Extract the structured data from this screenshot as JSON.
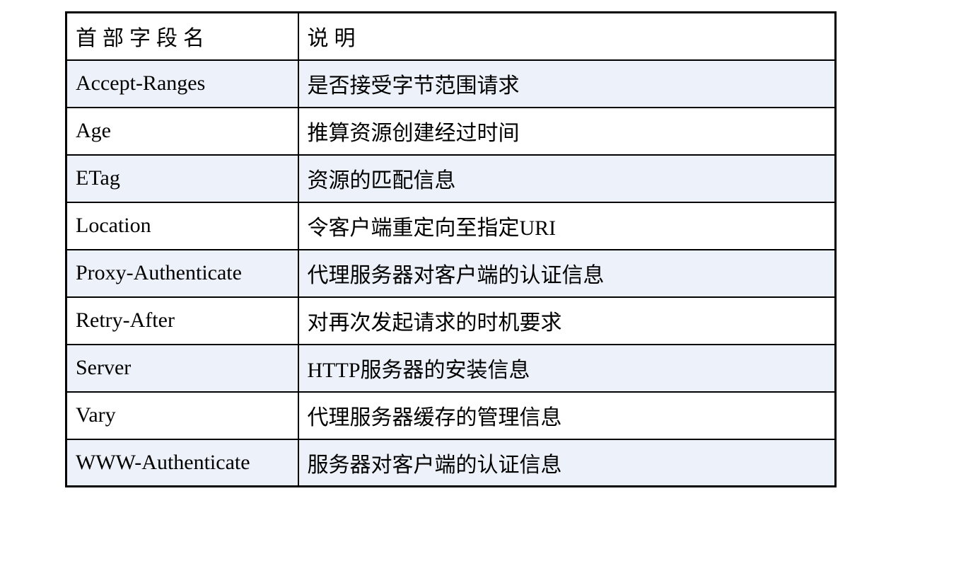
{
  "table": {
    "columns": [
      {
        "key": "field",
        "label": "首部字段名"
      },
      {
        "key": "description",
        "label": "说明"
      }
    ],
    "rows": [
      {
        "field": "Accept-Ranges",
        "description": "是否接受字节范围请求"
      },
      {
        "field": "Age",
        "description": "推算资源创建经过时间"
      },
      {
        "field": "ETag",
        "description": "资源的匹配信息"
      },
      {
        "field": "Location",
        "description": "令客户端重定向至指定URI"
      },
      {
        "field": "Proxy-Authenticate",
        "description": "代理服务器对客户端的认证信息"
      },
      {
        "field": "Retry-After",
        "description": "对再次发起请求的时机要求"
      },
      {
        "field": "Server",
        "description": "HTTP服务器的安装信息"
      },
      {
        "field": "Vary",
        "description": "代理服务器缓存的管理信息"
      },
      {
        "field": "WWW-Authenticate",
        "description": "服务器对客户端的认证信息"
      }
    ],
    "colors": {
      "stripe": "#edf2fa",
      "border": "#000000",
      "text": "#000000",
      "page_background": "#ffffff"
    }
  }
}
